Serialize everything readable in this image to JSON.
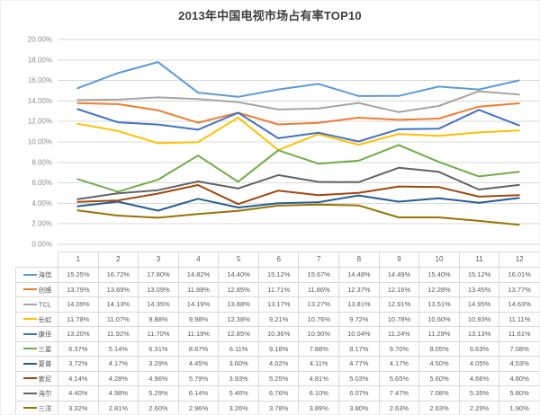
{
  "title": "2013年中国电视市场占有率TOP10",
  "chart_data": {
    "type": "line",
    "title": "2013年中国电视市场占有率TOP10",
    "x_categories": [
      "1",
      "2",
      "3",
      "4",
      "5",
      "6",
      "7",
      "8",
      "9",
      "10",
      "11",
      "12"
    ],
    "ylim": [
      0,
      20
    ],
    "ytick_step": 2,
    "ytick_labels": [
      "0.00%",
      "2.00%",
      "4.00%",
      "6.00%",
      "8.00%",
      "10.00%",
      "12.00%",
      "14.00%",
      "16.00%",
      "18.00%",
      "20.00%"
    ],
    "value_suffix": "%",
    "grid": "horizontal",
    "legend_position": "data-table-left-column",
    "series": [
      {
        "name": "海信",
        "color": "#5B9BD5",
        "values": [
          15.25,
          16.72,
          17.8,
          14.82,
          14.4,
          15.12,
          15.67,
          14.48,
          14.49,
          15.4,
          15.12,
          16.01
        ]
      },
      {
        "name": "创维",
        "color": "#ED7D31",
        "values": [
          13.79,
          13.69,
          13.09,
          11.88,
          12.85,
          11.71,
          11.86,
          12.37,
          12.16,
          12.28,
          13.45,
          13.77
        ]
      },
      {
        "name": "TCL",
        "color": "#A5A5A5",
        "values": [
          14.09,
          14.13,
          14.35,
          14.19,
          13.88,
          13.17,
          13.27,
          13.81,
          12.91,
          13.51,
          14.95,
          14.63
        ]
      },
      {
        "name": "长虹",
        "color": "#FFC000",
        "values": [
          11.78,
          11.07,
          9.88,
          9.98,
          12.38,
          9.21,
          10.76,
          9.72,
          10.78,
          10.6,
          10.93,
          11.11
        ]
      },
      {
        "name": "康佳",
        "color": "#4472C4",
        "values": [
          13.2,
          11.92,
          11.7,
          11.19,
          12.85,
          10.36,
          10.9,
          10.04,
          11.24,
          11.29,
          13.13,
          11.61
        ]
      },
      {
        "name": "三星",
        "color": "#70AD47",
        "values": [
          6.37,
          5.14,
          6.31,
          8.67,
          6.11,
          9.18,
          7.88,
          8.17,
          9.7,
          8.05,
          6.63,
          7.08
        ]
      },
      {
        "name": "夏普",
        "color": "#255E91",
        "values": [
          3.72,
          4.17,
          3.29,
          4.45,
          3.6,
          4.02,
          4.11,
          4.77,
          4.17,
          4.5,
          4.05,
          4.53
        ]
      },
      {
        "name": "索尼",
        "color": "#9E480E",
        "values": [
          4.14,
          4.28,
          4.96,
          5.79,
          3.93,
          5.25,
          4.81,
          5.03,
          5.65,
          5.6,
          4.66,
          4.8
        ]
      },
      {
        "name": "海尔",
        "color": "#636363",
        "values": [
          4.4,
          4.98,
          5.29,
          6.14,
          5.46,
          6.76,
          6.1,
          6.07,
          7.47,
          7.08,
          5.35,
          5.8
        ]
      },
      {
        "name": "三洋",
        "color": "#997300",
        "values": [
          3.32,
          2.81,
          2.6,
          2.96,
          3.26,
          3.78,
          3.89,
          3.8,
          2.63,
          2.63,
          2.29,
          1.9
        ]
      }
    ]
  }
}
